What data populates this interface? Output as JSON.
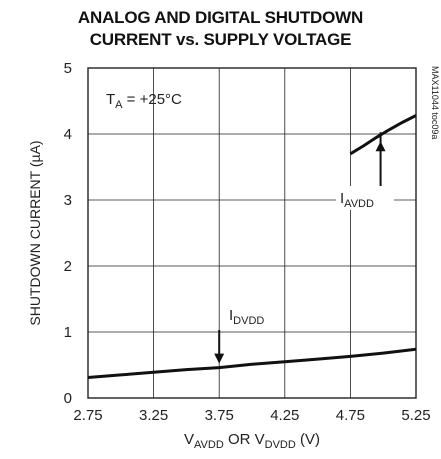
{
  "chart_data": {
    "type": "line",
    "title_line1": "ANALOG AND DIGITAL SHUTDOWN",
    "title_line2": "CURRENT vs. SUPPLY VOLTAGE",
    "ylabel": "SHUTDOWN CURRENT (µA)",
    "xlabel": {
      "p1": "V",
      "s1": "AVDD",
      "p2": " OR V",
      "s2": "DVDD",
      "p3": " (V)"
    },
    "xlim": [
      2.75,
      5.25
    ],
    "ylim": [
      0,
      5
    ],
    "xticks": [
      "2.75",
      "3.25",
      "3.75",
      "4.25",
      "4.75",
      "5.25"
    ],
    "yticks": [
      "0",
      "1",
      "2",
      "3",
      "4",
      "5"
    ],
    "grid": true,
    "annotation": {
      "prefix": "T",
      "sub": "A",
      "rest": " = +25°C"
    },
    "figure_id": "MAX11044 toc09a",
    "series": [
      {
        "name_prefix": "I",
        "name_sub": "AVDD",
        "x": [
          4.75,
          4.85,
          4.95,
          5.05,
          5.15,
          5.25
        ],
        "y": [
          3.7,
          3.82,
          3.95,
          4.07,
          4.18,
          4.28
        ]
      },
      {
        "name_prefix": "I",
        "name_sub": "DVDD",
        "x": [
          2.75,
          3.0,
          3.25,
          3.5,
          3.75,
          4.0,
          4.25,
          4.5,
          4.75,
          5.0,
          5.25
        ],
        "y": [
          0.31,
          0.35,
          0.39,
          0.43,
          0.46,
          0.51,
          0.55,
          0.59,
          0.63,
          0.68,
          0.74
        ]
      }
    ]
  }
}
